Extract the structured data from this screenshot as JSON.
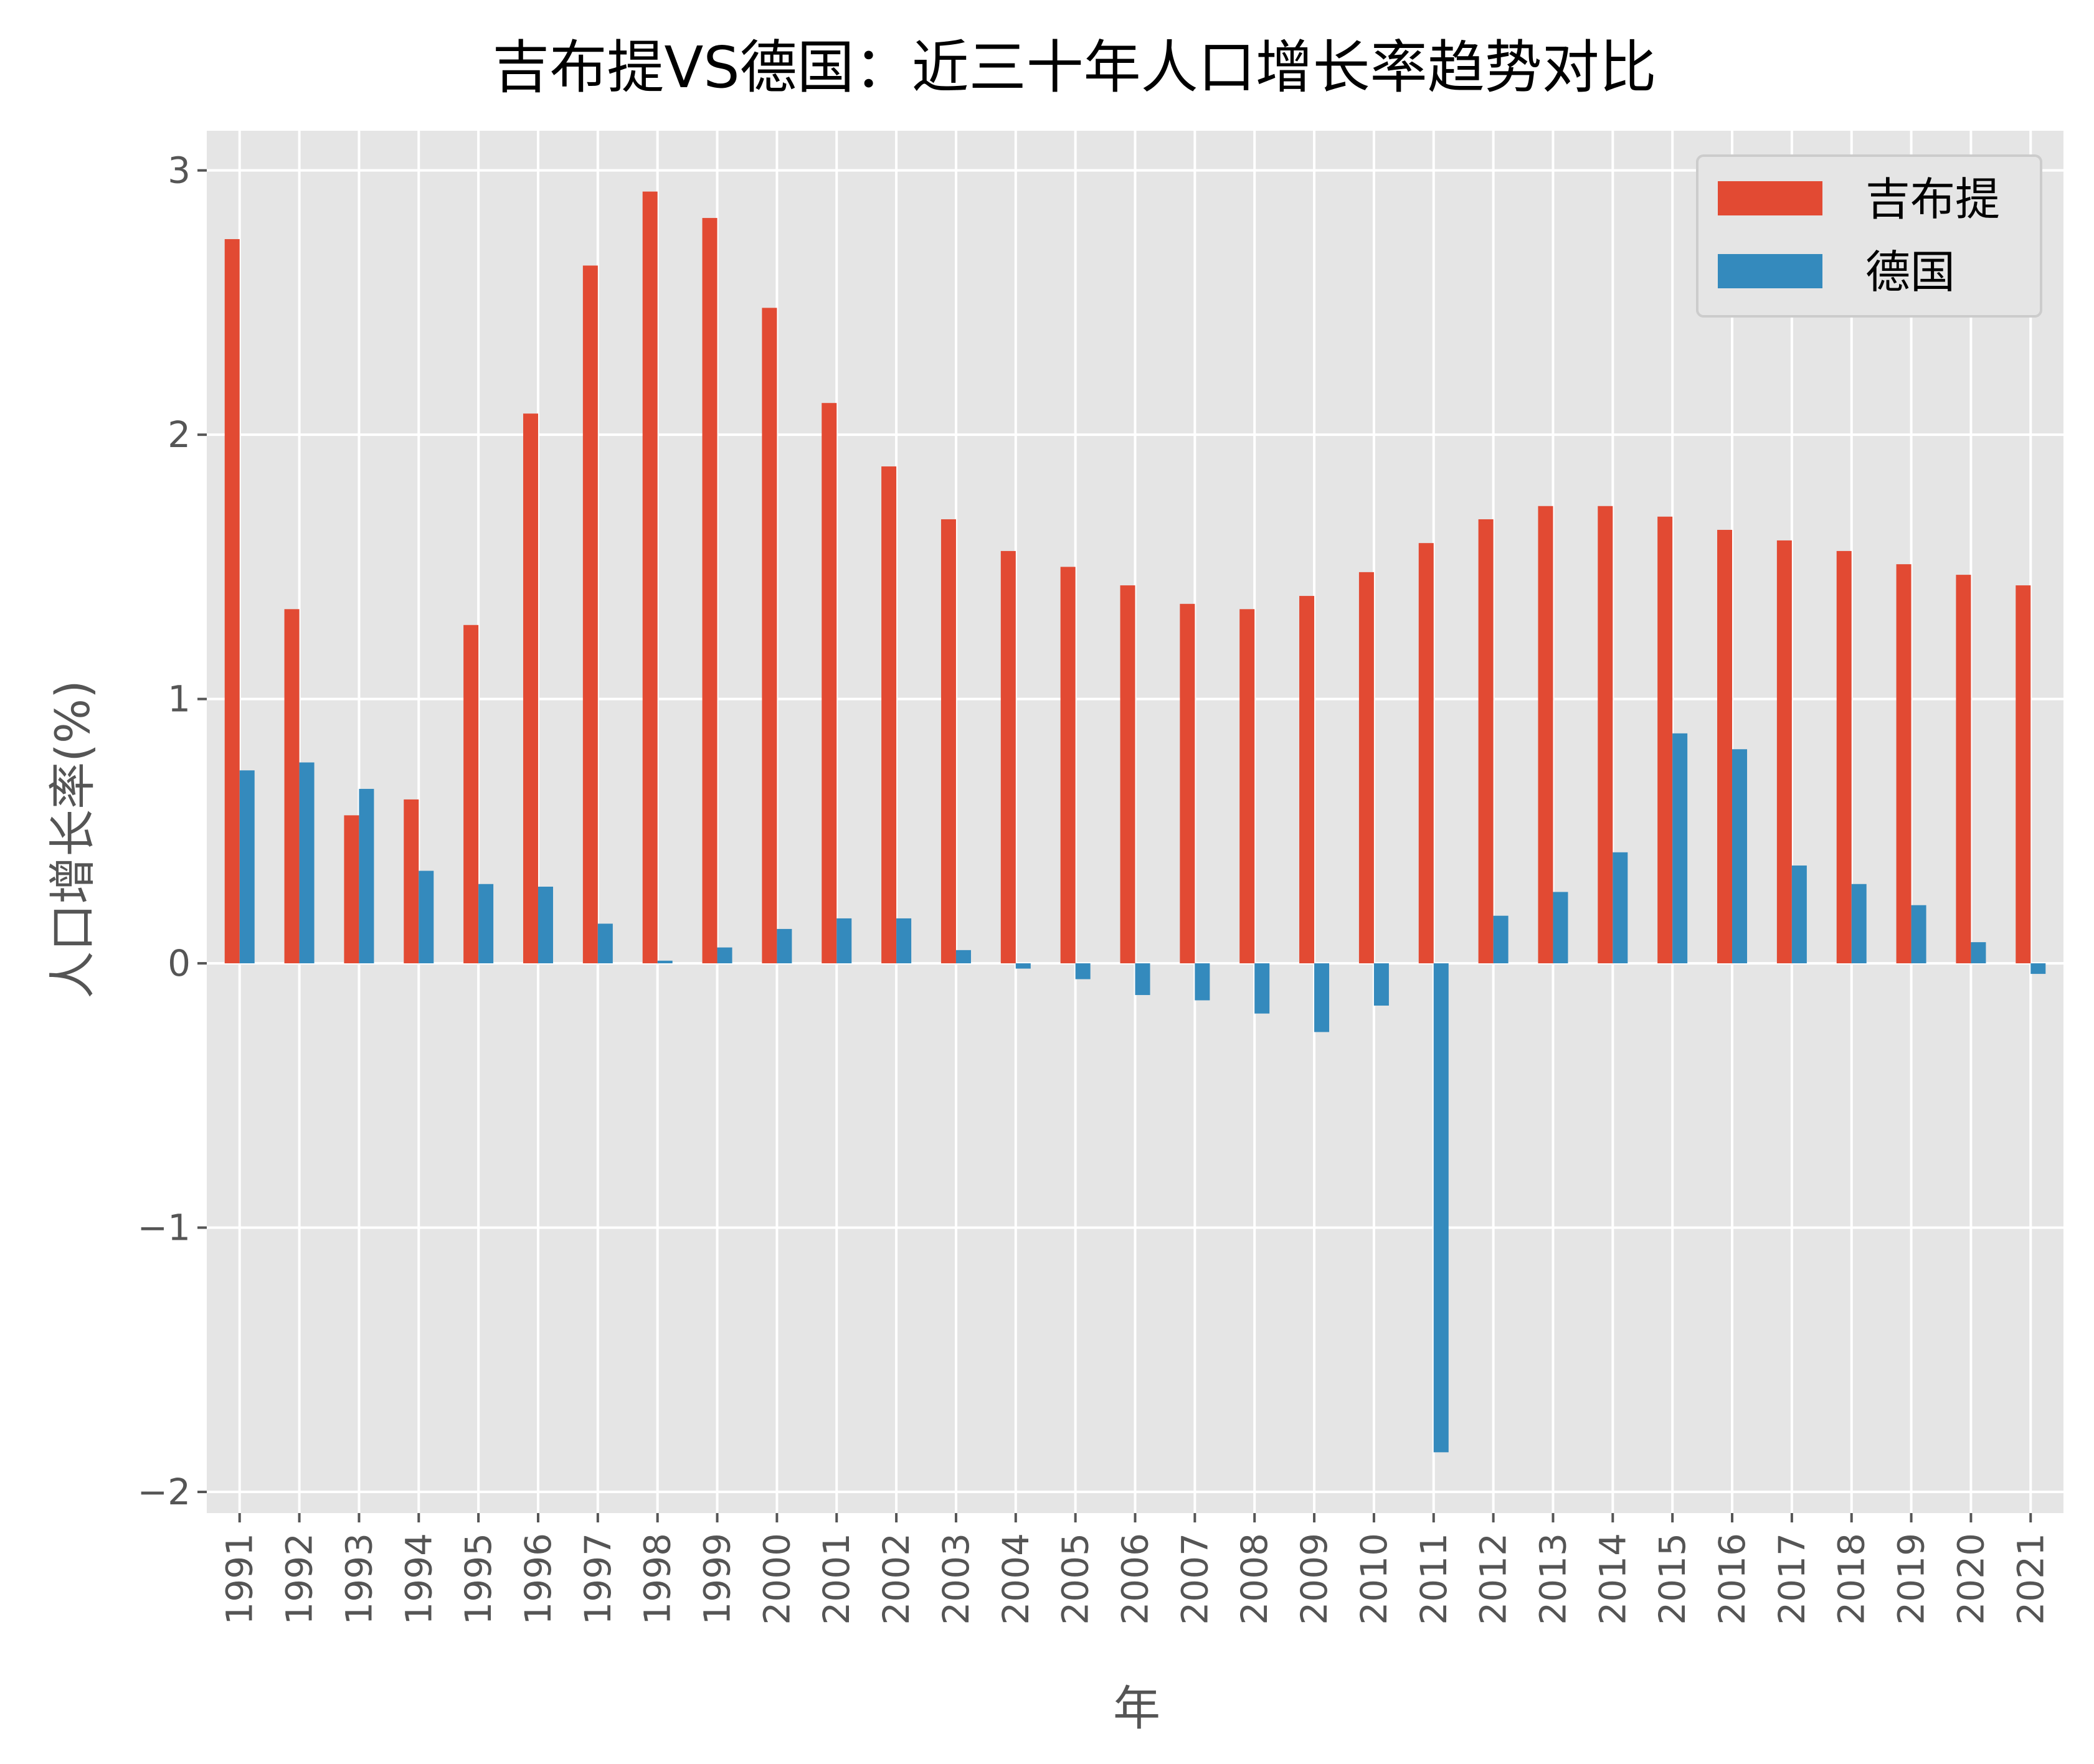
{
  "chart_data": {
    "type": "bar",
    "title": "吉布提VS德国：近三十年人口增长率趋势对比",
    "xlabel": "年",
    "ylabel": "人口增长率(%)",
    "ylim": [
      -2.08,
      3.15
    ],
    "yticks": [
      -2,
      -1,
      0,
      1,
      2,
      3
    ],
    "ytick_labels": [
      "−2",
      "−1",
      "0",
      "1",
      "2",
      "3"
    ],
    "grid": true,
    "legend_position": "top-right",
    "categories": [
      "1991",
      "1992",
      "1993",
      "1994",
      "1995",
      "1996",
      "1997",
      "1998",
      "1999",
      "2000",
      "2001",
      "2002",
      "2003",
      "2004",
      "2005",
      "2006",
      "2007",
      "2008",
      "2009",
      "2010",
      "2011",
      "2012",
      "2013",
      "2014",
      "2015",
      "2016",
      "2017",
      "2018",
      "2019",
      "2020",
      "2021"
    ],
    "series": [
      {
        "name": "吉布提",
        "color": "#E24A33",
        "values": [
          2.74,
          1.34,
          0.56,
          0.62,
          1.28,
          2.08,
          2.64,
          2.92,
          2.82,
          2.48,
          2.12,
          1.88,
          1.68,
          1.56,
          1.5,
          1.43,
          1.36,
          1.34,
          1.39,
          1.48,
          1.59,
          1.68,
          1.73,
          1.73,
          1.69,
          1.64,
          1.6,
          1.56,
          1.51,
          1.47,
          1.43
        ]
      },
      {
        "name": "德国",
        "color": "#348ABD",
        "values": [
          0.73,
          0.76,
          0.66,
          0.35,
          0.3,
          0.29,
          0.15,
          0.01,
          0.06,
          0.13,
          0.17,
          0.17,
          0.05,
          -0.02,
          -0.06,
          -0.12,
          -0.14,
          -0.19,
          -0.26,
          -0.16,
          -1.85,
          0.18,
          0.27,
          0.42,
          0.87,
          0.81,
          0.37,
          0.3,
          0.22,
          0.08,
          -0.04
        ]
      }
    ]
  },
  "style": {
    "plot_background": "#E5E5E5",
    "grid_color": "#FFFFFF",
    "text_color": "#555555",
    "title_color": "#000000"
  }
}
